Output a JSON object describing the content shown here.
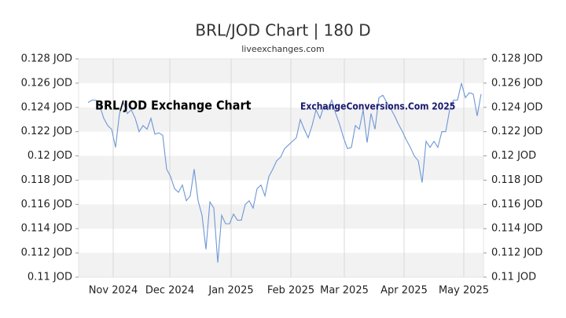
{
  "chart_data": {
    "type": "line",
    "title": "BRL/JOD Chart | 180 D",
    "subtitle": "liveexchanges.com",
    "annotations": [
      "BRL/JOD Exchange Chart",
      "ExchangeConversions.Com 2025"
    ],
    "color": "#6d97d6",
    "values": [
      0.1244,
      0.1246,
      0.1246,
      0.1241,
      0.1231,
      0.1225,
      0.1222,
      0.1207,
      0.1235,
      0.1244,
      0.1235,
      0.1238,
      0.1231,
      0.122,
      0.1225,
      0.1222,
      0.1231,
      0.1218,
      0.1219,
      0.1217,
      0.1189,
      0.1183,
      0.1173,
      0.117,
      0.1176,
      0.1163,
      0.1167,
      0.1189,
      0.1163,
      0.1151,
      0.1123,
      0.1162,
      0.1157,
      0.1112,
      0.1151,
      0.1144,
      0.1144,
      0.1152,
      0.1147,
      0.1147,
      0.116,
      0.1163,
      0.1157,
      0.1173,
      0.1176,
      0.1167,
      0.1183,
      0.1189,
      0.1196,
      0.1199,
      0.1206,
      0.1209,
      0.1212,
      0.1215,
      0.123,
      0.1222,
      0.1215,
      0.1225,
      0.1238,
      0.1231,
      0.1241,
      0.1238,
      0.1246,
      0.1235,
      0.1226,
      0.1215,
      0.1206,
      0.1207,
      0.1225,
      0.1222,
      0.1238,
      0.1211,
      0.1235,
      0.1222,
      0.1248,
      0.125,
      0.1244,
      0.1239,
      0.1233,
      0.1226,
      0.122,
      0.1213,
      0.1207,
      0.12,
      0.1196,
      0.1178,
      0.1212,
      0.1207,
      0.1212,
      0.1207,
      0.122,
      0.122,
      0.1238,
      0.1246,
      0.1246,
      0.126,
      0.1248,
      0.1252,
      0.1251,
      0.1233,
      0.1251
    ],
    "xlim": [
      -2.4,
      100.6
    ],
    "xticks": [
      {
        "value": 6.4,
        "label": "Nov 2024"
      },
      {
        "value": 20.8,
        "label": "Dec 2024"
      },
      {
        "value": 36.4,
        "label": "Jan 2025"
      },
      {
        "value": 51.6,
        "label": "Feb 2025"
      },
      {
        "value": 65.2,
        "label": "Mar 2025"
      },
      {
        "value": 80.4,
        "label": "Apr 2025"
      },
      {
        "value": 95.6,
        "label": "May 2025"
      }
    ],
    "ylim": [
      0.11,
      0.128
    ],
    "yticks": [
      {
        "value": 0.11,
        "label": "0.11 JOD"
      },
      {
        "value": 0.112,
        "label": "0.112 JOD"
      },
      {
        "value": 0.114,
        "label": "0.114 JOD"
      },
      {
        "value": 0.116,
        "label": "0.116 JOD"
      },
      {
        "value": 0.118,
        "label": "0.118 JOD"
      },
      {
        "value": 0.12,
        "label": "0.12 JOD"
      },
      {
        "value": 0.122,
        "label": "0.122 JOD"
      },
      {
        "value": 0.124,
        "label": "0.124 JOD"
      },
      {
        "value": 0.126,
        "label": "0.126 JOD"
      },
      {
        "value": 0.128,
        "label": "0.128 JOD"
      }
    ],
    "y2lim": [
      0.11,
      0.128
    ],
    "y2ticks": [
      {
        "value": 0.11,
        "label": "0.11 JOD"
      },
      {
        "value": 0.112,
        "label": "0.112 JOD"
      },
      {
        "value": 0.114,
        "label": "0.114 JOD"
      },
      {
        "value": 0.116,
        "label": "0.116 JOD"
      },
      {
        "value": 0.118,
        "label": "0.118 JOD"
      },
      {
        "value": 0.12,
        "label": "0.12 JOD"
      },
      {
        "value": 0.122,
        "label": "0.122 JOD"
      },
      {
        "value": 0.124,
        "label": "0.124 JOD"
      },
      {
        "value": 0.126,
        "label": "0.126 JOD"
      },
      {
        "value": 0.128,
        "label": "0.128 JOD"
      }
    ],
    "grid": true
  }
}
